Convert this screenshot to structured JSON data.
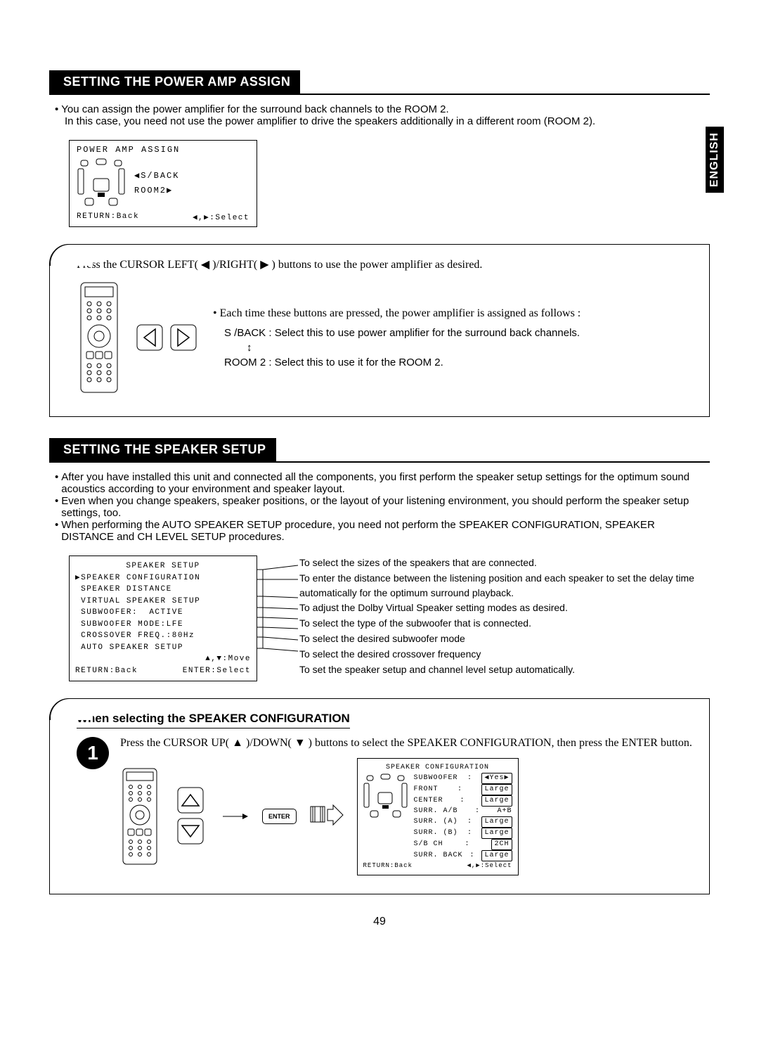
{
  "language_tab": "ENGLISH",
  "page_number": "49",
  "section1": {
    "title": "SETTING THE POWER AMP ASSIGN",
    "bullets": [
      "You can assign the power amplifier for the surround back channels to the ROOM 2.",
      "In this case, you need not use the power amplifier to drive the speakers additionally in a different room (ROOM 2)."
    ],
    "lcd": {
      "title": "POWER AMP ASSIGN",
      "option1": "◀S/BACK",
      "option2": "ROOM2▶",
      "footer_left": "RETURN:Back",
      "footer_right": "◀,▶:Select"
    },
    "callout": {
      "instruction": "Press the CURSOR LEFT( ◀ )/RIGHT( ▶ ) buttons to use the power amplifier as desired.",
      "bullet": "Each time these buttons are pressed, the power amplifier is assigned as follows :",
      "opt_a": "S /BACK : Select this to use power amplifier for the surround back channels.",
      "opt_b": "ROOM 2 : Select this to use it for the ROOM 2."
    }
  },
  "section2": {
    "title": "SETTING THE SPEAKER SETUP",
    "bullets": [
      "After you have installed this unit and connected all the components, you first perform the speaker setup settings for the optimum sound acoustics according to your environment and speaker layout.",
      "Even when you change speakers, speaker positions, or the layout of your listening environment, you should perform the speaker setup settings, too.",
      "When performing the AUTO SPEAKER SETUP procedure, you need not perform the SPEAKER CONFIGURATION, SPEAKER DISTANCE and CH LEVEL SETUP procedures."
    ],
    "menu": {
      "title": "SPEAKER     SETUP",
      "items": [
        "▶SPEAKER CONFIGURATION",
        " SPEAKER DISTANCE",
        " VIRTUAL SPEAKER SETUP",
        " SUBWOOFER:  ACTIVE",
        " SUBWOOFER MODE:LFE",
        " CROSSOVER FREQ.:80Hz",
        " AUTO SPEAKER SETUP"
      ],
      "footer1": "▲,▼:Move",
      "footer2_left": "RETURN:Back",
      "footer2_right": "ENTER:Select"
    },
    "descriptions": [
      "To select the sizes of the speakers that are connected.",
      "To enter the distance between the listening position and each speaker to set the delay time automatically for the optimum surround playback.",
      "To adjust the Dolby Virtual Speaker setting modes as desired.",
      "To select the type of the subwoofer that is connected.",
      "To select the desired subwoofer mode",
      "To select the desired crossover frequency",
      "To set the speaker setup and channel level setup automatically."
    ],
    "step1": {
      "number": "1",
      "sub_header": "When selecting the SPEAKER  CONFIGURATION",
      "instruction": "Press the CURSOR UP( ▲ )/DOWN( ▼ ) buttons to select the SPEAKER CONFIGURATION, then press the ENTER button.",
      "enter_label": "ENTER",
      "config_lcd": {
        "title": "SPEAKER CONFIGURATION",
        "rows": [
          {
            "k": "SUBWOOFER",
            "v": "◀Yes▶",
            "boxed": true
          },
          {
            "k": "FRONT",
            "v": "Large",
            "boxed": true
          },
          {
            "k": "CENTER",
            "v": "Large",
            "boxed": true
          },
          {
            "k": "SURR. A/B",
            "v": "A+B",
            "boxed": false
          },
          {
            "k": "SURR. (A)",
            "v": "Large",
            "boxed": true
          },
          {
            "k": "SURR. (B)",
            "v": "Large",
            "boxed": true
          },
          {
            "k": "S/B  CH",
            "v": "2CH",
            "boxed": true
          },
          {
            "k": "SURR. BACK",
            "v": "Large",
            "boxed": true
          }
        ],
        "footer_left": "RETURN:Back",
        "footer_right": "◀,▶:Select"
      }
    }
  }
}
